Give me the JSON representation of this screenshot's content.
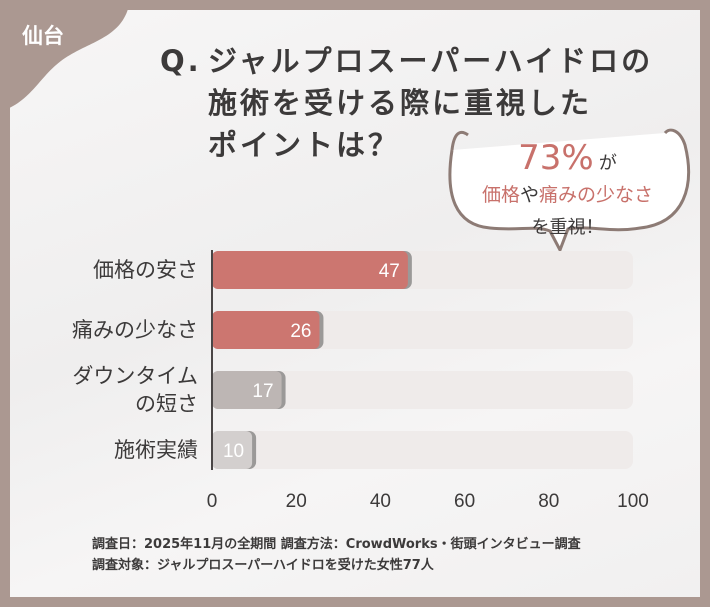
{
  "region_label": "仙台",
  "title": {
    "q": "Q.",
    "line1": "ジャルプロスーパーハイドロの",
    "line2": "施術を受ける際に重視した",
    "line3": "ポイントは？"
  },
  "callout": {
    "percent": "73%",
    "ga": "が",
    "item1": "価格",
    "ya": "や",
    "item2": "痛みの少なさ",
    "line3": "を重視！"
  },
  "chart_data": {
    "type": "bar",
    "orientation": "horizontal",
    "categories": [
      "価格の安さ",
      "痛みの少なさ",
      "ダウンタイムの短さ",
      "施術実績"
    ],
    "category_lines": [
      [
        "価格の安さ"
      ],
      [
        "痛みの少なさ"
      ],
      [
        "ダウンタイム",
        "の短さ"
      ],
      [
        "施術実績"
      ]
    ],
    "values": [
      47,
      26,
      17,
      10
    ],
    "xlim": [
      0,
      100
    ],
    "xticks": [
      "0",
      "20",
      "40",
      "60",
      "80",
      "100"
    ],
    "bar_colors": [
      "#cc7670",
      "#cc7670",
      "#bdb6b4",
      "#d3cfce"
    ],
    "track_color": "#efebea",
    "grid": false
  },
  "footnote": {
    "line1": "調査日：2025年11月の全期間 調査方法：CrowdWorks・街頭インタビュー調査",
    "line2": "調査対象：ジャルプロスーパーハイドロを受けた女性77人"
  }
}
